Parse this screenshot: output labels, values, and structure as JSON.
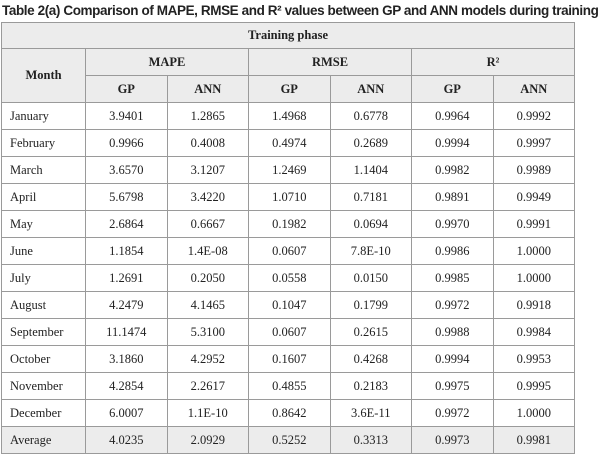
{
  "caption": "Table 2(a) Comparison of MAPE, RMSE and R² values between GP and ANN models during training",
  "table": {
    "phase": "Training phase",
    "row_header": "Month",
    "groups": [
      "MAPE",
      "RMSE",
      "R²"
    ],
    "sub_headers": [
      "GP",
      "ANN",
      "GP",
      "ANN",
      "GP",
      "ANN"
    ],
    "rows": [
      [
        "January",
        "3.9401",
        "1.2865",
        "1.4968",
        "0.6778",
        "0.9964",
        "0.9992"
      ],
      [
        "February",
        "0.9966",
        "0.4008",
        "0.4974",
        "0.2689",
        "0.9994",
        "0.9997"
      ],
      [
        "March",
        "3.6570",
        "3.1207",
        "1.2469",
        "1.1404",
        "0.9982",
        "0.9989"
      ],
      [
        "April",
        "5.6798",
        "3.4220",
        "1.0710",
        "0.7181",
        "0.9891",
        "0.9949"
      ],
      [
        "May",
        "2.6864",
        "0.6667",
        "0.1982",
        "0.0694",
        "0.9970",
        "0.9991"
      ],
      [
        "June",
        "1.1854",
        "1.4E-08",
        "0.0607",
        "7.8E-10",
        "0.9986",
        "1.0000"
      ],
      [
        "July",
        "1.2691",
        "0.2050",
        "0.0558",
        "0.0150",
        "0.9985",
        "1.0000"
      ],
      [
        "August",
        "4.2479",
        "4.1465",
        "0.1047",
        "0.1799",
        "0.9972",
        "0.9918"
      ],
      [
        "September",
        "11.1474",
        "5.3100",
        "0.0607",
        "0.2615",
        "0.9988",
        "0.9984"
      ],
      [
        "October",
        "3.1860",
        "4.2952",
        "0.1607",
        "0.4268",
        "0.9994",
        "0.9953"
      ],
      [
        "November",
        "4.2854",
        "2.2617",
        "0.4855",
        "0.2183",
        "0.9975",
        "0.9995"
      ],
      [
        "December",
        "6.0007",
        "1.1E-10",
        "0.8642",
        "3.6E-11",
        "0.9972",
        "1.0000"
      ],
      [
        "Average",
        "4.0235",
        "2.0929",
        "0.5252",
        "0.3313",
        "0.9973",
        "0.9981"
      ]
    ]
  }
}
